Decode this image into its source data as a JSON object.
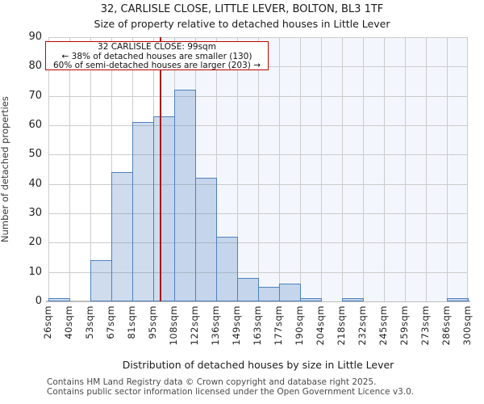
{
  "title": "32, CARLISLE CLOSE, LITTLE LEVER, BOLTON, BL3 1TF",
  "subtitle": "Size of property relative to detached houses in Little Lever",
  "annotation": {
    "line1": "32 CARLISLE CLOSE: 99sqm",
    "line2": "← 38% of detached houses are smaller (130)",
    "line3": "60% of semi-detached houses are larger (203) →"
  },
  "chart_data": {
    "type": "bar",
    "categories": [
      "26sqm",
      "40sqm",
      "53sqm",
      "67sqm",
      "81sqm",
      "95sqm",
      "108sqm",
      "122sqm",
      "136sqm",
      "149sqm",
      "163sqm",
      "177sqm",
      "190sqm",
      "204sqm",
      "218sqm",
      "232sqm",
      "245sqm",
      "259sqm",
      "273sqm",
      "286sqm",
      "300sqm"
    ],
    "values": [
      1,
      0,
      14,
      44,
      61,
      63,
      72,
      42,
      22,
      8,
      5,
      6,
      1,
      0,
      1,
      0,
      0,
      0,
      0,
      1
    ],
    "title": "32, CARLISLE CLOSE, LITTLE LEVER, BOLTON, BL3 1TF",
    "xlabel": "Distribution of detached houses by size in Little Lever",
    "ylabel": "Number of detached properties",
    "ylim": [
      0,
      90
    ],
    "yticks": [
      0,
      10,
      20,
      30,
      40,
      50,
      60,
      70,
      80,
      90
    ],
    "x_axis_range_sqm": [
      26,
      300
    ],
    "marker_sqm": 99,
    "grid": "on",
    "legend": "none"
  },
  "footer": {
    "line1": "Contains HM Land Registry data © Crown copyright and database right 2025.",
    "line2": "Contains public sector information licensed under the Open Government Licence v3.0."
  },
  "colors": {
    "bar_fill": "rgba(79,129,189,0.28)",
    "bar_border": "#4f81bd",
    "marker_line": "#aa1414",
    "annotation_border": "#c00000",
    "shade_right_of_marker": "#f3f6fc",
    "gridline": "#cccccc",
    "axis_line": "#bcbcbc"
  }
}
